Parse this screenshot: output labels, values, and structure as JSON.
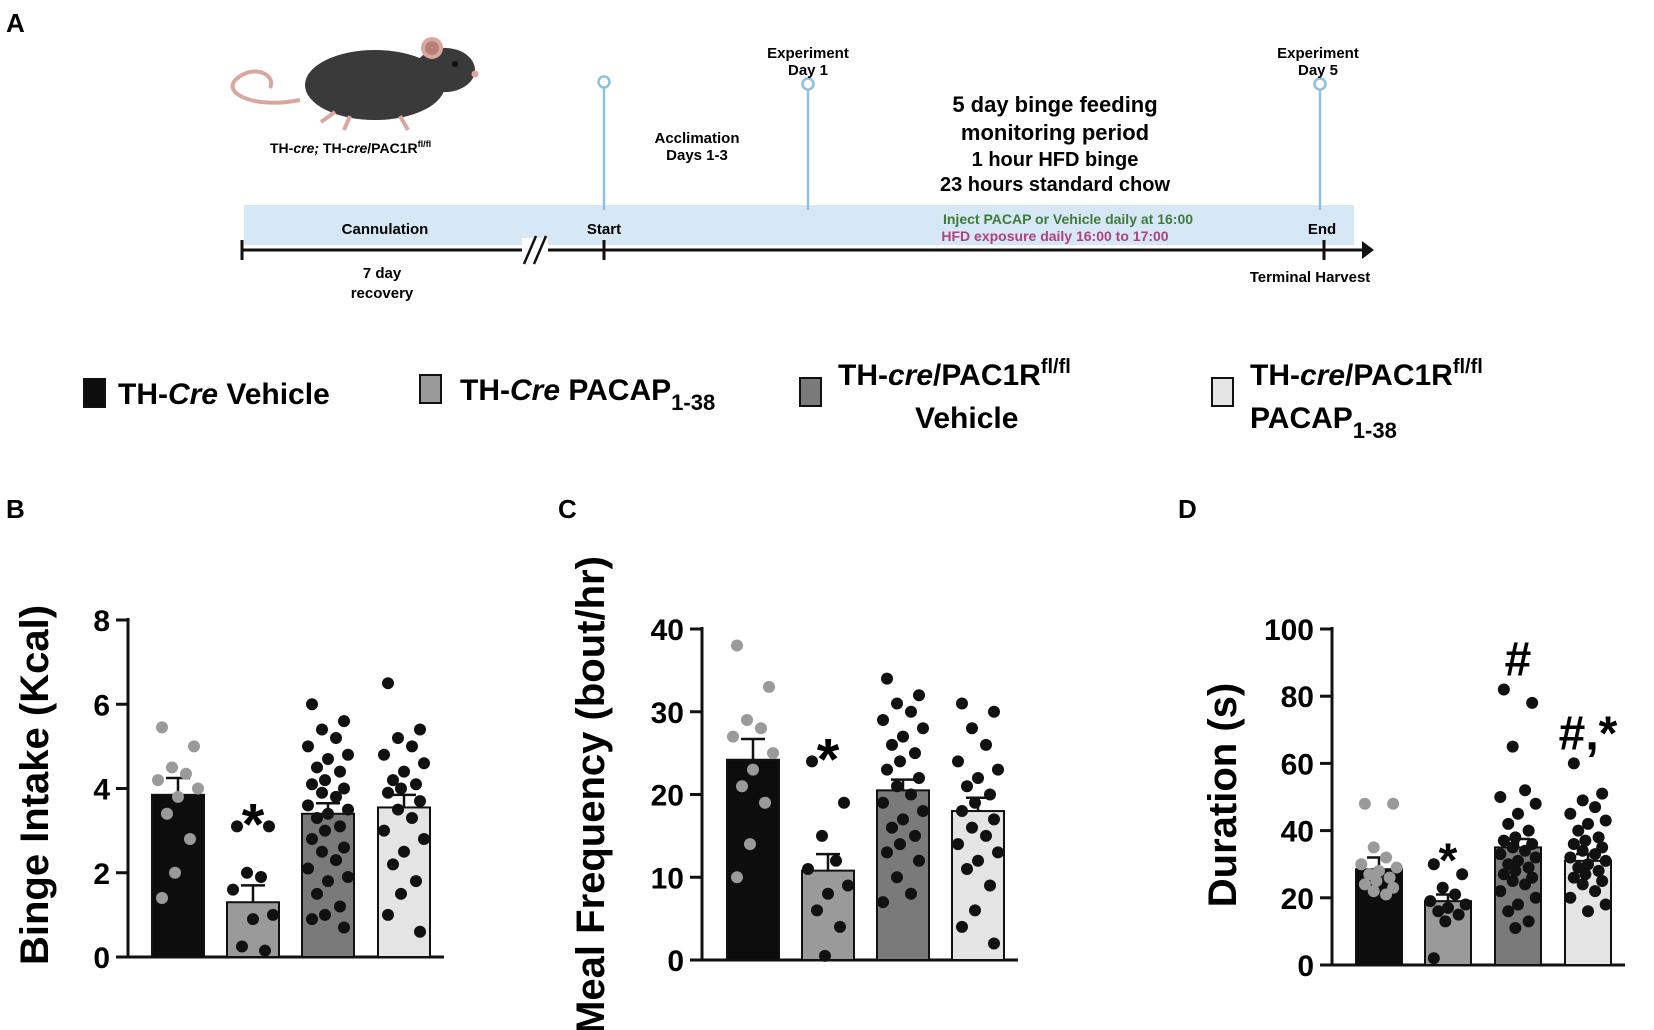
{
  "panels": {
    "a": "A",
    "b": "B",
    "c": "C",
    "d": "D"
  },
  "timeline": {
    "mouse_label": {
      "a": "TH-",
      "b": "cre;",
      "c": " TH-",
      "d": "cre",
      "e": "/PAC1R",
      "sup": "fl/fl"
    },
    "cannulation": "Cannulation",
    "recovery_1": "7 day",
    "recovery_2": "recovery",
    "start": "Start",
    "acclimation_1": "Acclimation",
    "acclimation_2": "Days 1-3",
    "exp_day1_1": "Experiment",
    "exp_day1_2": "Day 1",
    "exp_day5_1": "Experiment",
    "exp_day5_2": "Day 5",
    "period_1": "5 day binge feeding",
    "period_2": "monitoring period",
    "period_3": "1 hour HFD binge",
    "period_4": "23 hours standard chow",
    "inject": "Inject PACAP or Vehicle daily at 16:00",
    "hfd": "HFD exposure daily 16:00 to 17:00",
    "end": "End",
    "terminal": "Terminal Harvest",
    "colors": {
      "band": "#d6e8f5",
      "pin": "#8ec1e0",
      "inject": "#3f7a3a",
      "hfd": "#b0407e"
    }
  },
  "legend": {
    "g1": {
      "a": "TH-",
      "b": "Cre",
      "c": " Vehicle"
    },
    "g2": {
      "a": "TH-",
      "b": "Cre",
      "c": " PACAP",
      "sub": "1-38"
    },
    "g3": {
      "a": "TH-",
      "b": "cre",
      "c": "/PAC1R",
      "sup": "fl/fl",
      "line2": "Vehicle"
    },
    "g4": {
      "a": "TH-",
      "b": "cre",
      "c": "/PAC1R",
      "sup": "fl/fl",
      "line2": "PACAP",
      "sub": "1-38"
    },
    "colors": [
      "#0d0d0d",
      "#9a9a9a",
      "#7a7a7a",
      "#e4e4e4"
    ]
  },
  "chart_data": [
    {
      "type": "bar",
      "panel": "B",
      "ylabel": "Binge Intake  (Kcal)",
      "ylim": [
        0,
        8
      ],
      "yticks": [
        0,
        2,
        4,
        6,
        8
      ],
      "categories": [
        "TH-Cre Vehicle",
        "TH-Cre PACAP1-38",
        "TH-cre/PAC1Rfl/fl Vehicle",
        "TH-cre/PAC1Rfl/fl PACAP1-38"
      ],
      "values": [
        3.85,
        1.3,
        3.4,
        3.55
      ],
      "sem": [
        0.4,
        0.4,
        0.25,
        0.3
      ],
      "annotations": [
        "",
        "*",
        "",
        ""
      ],
      "points": [
        [
          5.45,
          5.0,
          4.5,
          4.35,
          4.2,
          4.0,
          3.8,
          3.4,
          2.8,
          2.0,
          1.4
        ],
        [
          3.1,
          3.1,
          2.0,
          1.9,
          1.6,
          1.0,
          0.9,
          0.25,
          0.15
        ],
        [
          6.0,
          5.6,
          5.4,
          5.2,
          5.0,
          4.8,
          4.7,
          4.5,
          4.4,
          4.2,
          4.1,
          4.0,
          3.9,
          3.8,
          3.6,
          3.5,
          3.4,
          3.3,
          3.1,
          3.0,
          2.8,
          2.6,
          2.5,
          2.3,
          2.1,
          1.9,
          1.8,
          1.5,
          1.2,
          1.0,
          0.9,
          0.7
        ],
        [
          6.5,
          5.4,
          5.2,
          5.0,
          4.8,
          4.6,
          4.4,
          4.2,
          4.1,
          4.0,
          3.9,
          3.7,
          3.5,
          3.3,
          3.0,
          2.8,
          2.5,
          2.2,
          1.8,
          1.5,
          1.0,
          0.6
        ]
      ]
    },
    {
      "type": "bar",
      "panel": "C",
      "ylabel": "Meal Frequency (bout/hr)",
      "ylim": [
        0,
        40
      ],
      "yticks": [
        0,
        10,
        20,
        30,
        40
      ],
      "categories": [
        "TH-Cre Vehicle",
        "TH-Cre PACAP1-38",
        "TH-cre/PAC1Rfl/fl Vehicle",
        "TH-cre/PAC1Rfl/fl PACAP1-38"
      ],
      "values": [
        24.2,
        10.8,
        20.5,
        18.0
      ],
      "sem": [
        2.5,
        2.0,
        1.3,
        1.6
      ],
      "annotations": [
        "",
        "*",
        "",
        ""
      ],
      "points": [
        [
          38,
          33,
          29,
          28,
          27,
          25,
          23,
          21,
          19,
          14,
          10
        ],
        [
          24,
          19,
          15,
          12,
          11,
          9,
          8,
          6,
          4,
          0.5
        ],
        [
          34,
          32,
          31,
          30,
          29,
          28,
          27,
          26,
          25,
          24,
          23,
          22,
          21,
          20,
          19,
          18,
          17,
          16,
          15,
          14,
          13,
          12,
          10,
          8,
          7
        ],
        [
          31,
          30,
          28,
          26,
          24,
          23,
          22,
          21,
          20,
          19,
          18,
          17,
          16,
          15,
          14,
          13,
          12,
          11,
          9,
          6,
          4,
          2
        ]
      ]
    },
    {
      "type": "bar",
      "panel": "D",
      "ylabel": "Duration  (s)",
      "ylim": [
        0,
        100
      ],
      "yticks": [
        0,
        20,
        40,
        60,
        80,
        100
      ],
      "categories": [
        "TH-Cre Vehicle",
        "TH-Cre PACAP1-38",
        "TH-cre/PAC1Rfl/fl Vehicle",
        "TH-cre/PAC1Rfl/fl PACAP1-38"
      ],
      "values": [
        28.5,
        19.0,
        35.0,
        31.0
      ],
      "sem": [
        3.5,
        2.0,
        2.5,
        2.0
      ],
      "annotations": [
        "",
        "*",
        "#",
        "#,*"
      ],
      "points": [
        [
          48,
          48,
          35,
          32,
          30,
          29,
          28,
          27,
          26,
          25,
          24,
          23,
          22,
          21
        ],
        [
          30,
          27,
          23,
          21,
          19,
          18,
          17,
          16,
          15,
          13,
          2
        ],
        [
          82,
          78,
          65,
          52,
          50,
          48,
          45,
          42,
          40,
          38,
          37,
          36,
          35,
          34,
          33,
          32,
          31,
          30,
          29,
          28,
          27,
          26,
          25,
          24,
          22,
          20,
          18,
          16,
          13,
          11
        ],
        [
          60,
          51,
          49,
          47,
          45,
          43,
          42,
          40,
          38,
          37,
          36,
          35,
          34,
          33,
          32,
          31,
          30,
          29,
          28,
          27,
          26,
          25,
          24,
          22,
          20,
          18,
          16
        ]
      ]
    }
  ]
}
